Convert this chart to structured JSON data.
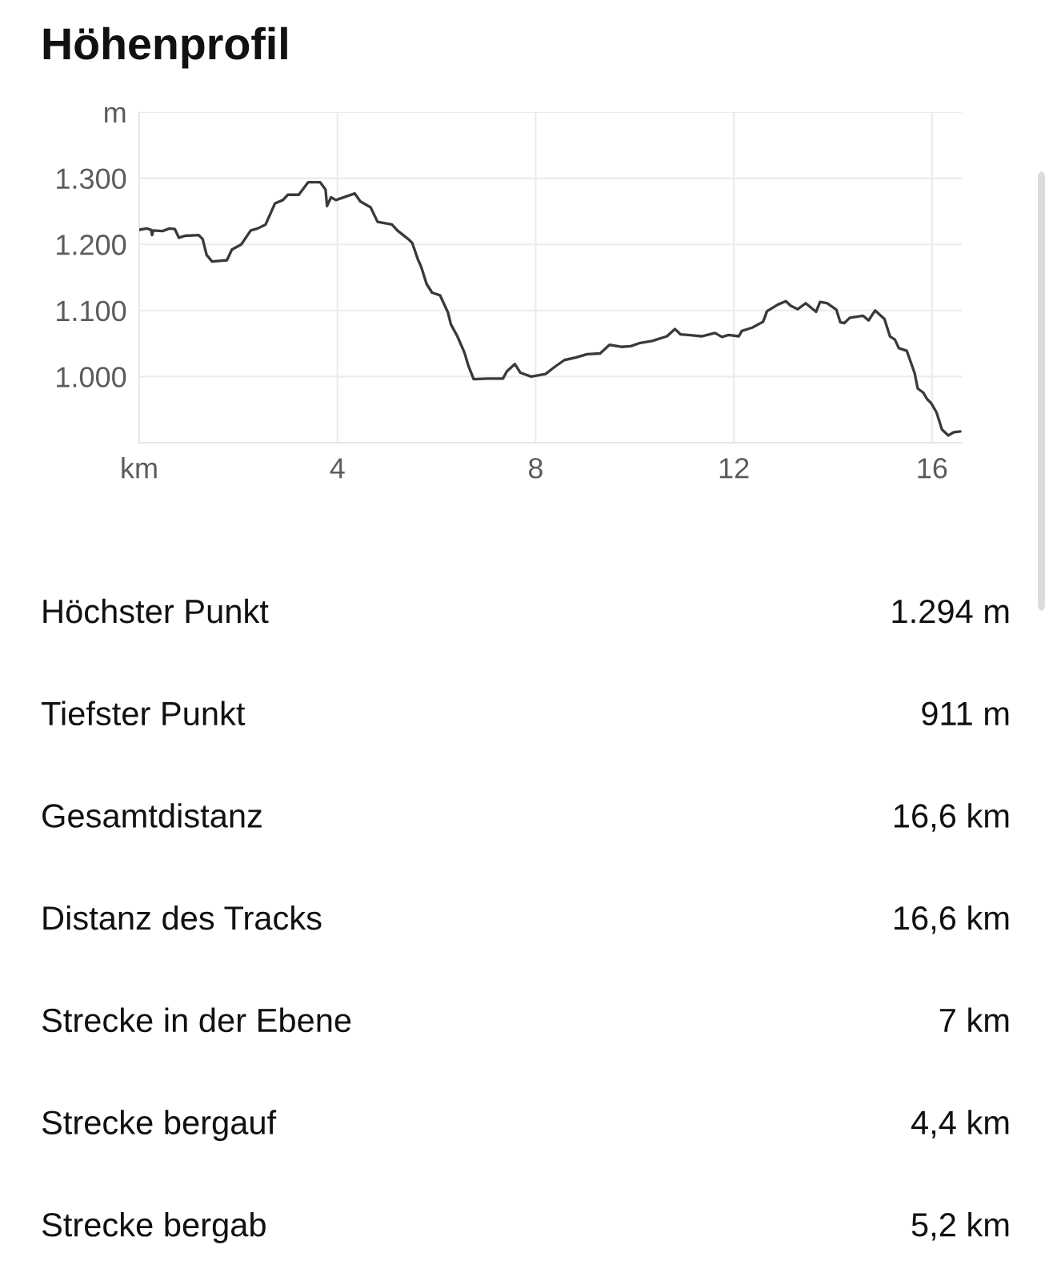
{
  "chart_data": {
    "type": "line",
    "title": "Höhenprofil",
    "x": [
      0.0,
      0.15,
      0.24,
      0.26,
      0.28,
      0.47,
      0.61,
      0.72,
      0.8,
      0.93,
      1.2,
      1.28,
      1.36,
      1.47,
      1.77,
      1.87,
      2.06,
      2.25,
      2.39,
      2.55,
      2.74,
      2.9,
      3.0,
      3.22,
      3.41,
      3.65,
      3.76,
      3.79,
      3.87,
      3.97,
      4.35,
      4.46,
      4.67,
      4.81,
      5.1,
      5.21,
      5.43,
      5.51,
      5.62,
      5.69,
      5.8,
      5.91,
      6.07,
      6.23,
      6.29,
      6.42,
      6.56,
      6.64,
      6.75,
      7.04,
      7.34,
      7.42,
      7.58,
      7.69,
      7.91,
      8.2,
      8.39,
      8.58,
      8.82,
      9.04,
      9.3,
      9.49,
      9.73,
      9.92,
      10.11,
      10.35,
      10.65,
      10.81,
      10.92,
      11.08,
      11.35,
      11.62,
      11.76,
      11.89,
      12.1,
      12.16,
      12.37,
      12.59,
      12.67,
      12.89,
      13.05,
      13.15,
      13.29,
      13.45,
      13.66,
      13.74,
      13.88,
      14.07,
      14.15,
      14.23,
      14.34,
      14.61,
      14.72,
      14.85,
      15.04,
      15.15,
      15.25,
      15.33,
      15.49,
      15.65,
      15.71,
      15.82,
      15.9,
      15.98,
      16.09,
      16.2,
      16.33,
      16.44,
      16.57
    ],
    "series": [
      {
        "color": "#3a3a3a",
        "values": [
          1222,
          1224,
          1222,
          1214,
          1221,
          1220,
          1224,
          1223,
          1210,
          1213,
          1214,
          1208,
          1184,
          1174,
          1176,
          1192,
          1200,
          1221,
          1224,
          1230,
          1262,
          1267,
          1275,
          1275,
          1294,
          1294,
          1283,
          1258,
          1271,
          1267,
          1277,
          1265,
          1256,
          1234,
          1230,
          1221,
          1208,
          1202,
          1178,
          1166,
          1140,
          1127,
          1123,
          1097,
          1079,
          1061,
          1037,
          1017,
          996,
          997,
          997,
          1008,
          1019,
          1006,
          1000,
          1004,
          1015,
          1025,
          1029,
          1034,
          1035,
          1048,
          1045,
          1046,
          1051,
          1054,
          1061,
          1072,
          1064,
          1063,
          1061,
          1066,
          1060,
          1063,
          1061,
          1069,
          1074,
          1083,
          1099,
          1109,
          1114,
          1107,
          1102,
          1111,
          1098,
          1113,
          1111,
          1101,
          1082,
          1081,
          1089,
          1092,
          1085,
          1100,
          1087,
          1061,
          1056,
          1043,
          1039,
          1005,
          982,
          976,
          966,
          960,
          946,
          920,
          911,
          916,
          917
        ]
      }
    ],
    "xlim": [
      0,
      16.6
    ],
    "ylim": [
      900,
      1400
    ],
    "xticks": [
      {
        "value": 0,
        "label": "km"
      },
      4,
      8,
      12,
      16
    ],
    "yticks": [
      {
        "value": 1000,
        "label": "1.000"
      },
      {
        "value": 1100,
        "label": "1.100"
      },
      {
        "value": 1200,
        "label": "1.200"
      },
      {
        "value": 1300,
        "label": "1.300"
      },
      {
        "value": 1400,
        "label": "m"
      }
    ],
    "grid": true,
    "line_style": "solid",
    "annotations": [
      "Höchster Punkt",
      "1.294 m",
      "Tiefster Punkt",
      "911 m",
      "Gesamtdistanz",
      "16,6 km",
      "Distanz des Tracks",
      "16,6 km",
      "Strecke in der Ebene",
      "7 km",
      "Strecke bergauf",
      "4,4 km",
      "Strecke bergab",
      "5,2 km"
    ]
  }
}
